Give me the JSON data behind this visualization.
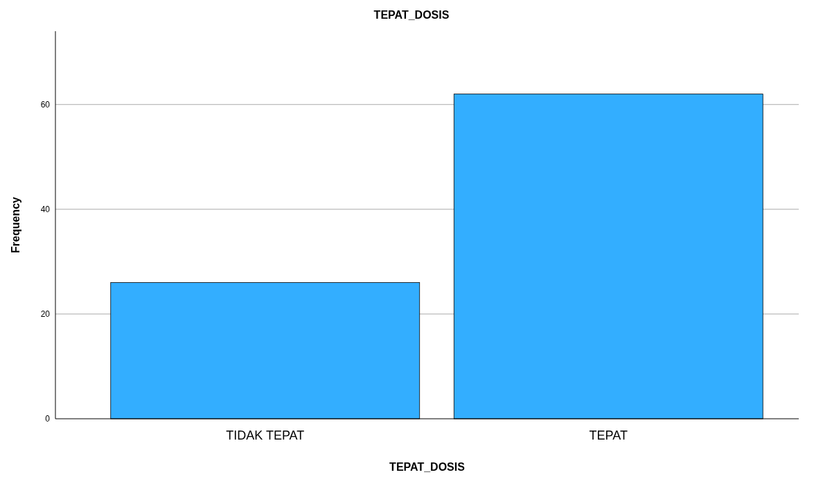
{
  "chart_data": {
    "type": "bar",
    "title": "TEPAT_DOSIS",
    "xlabel": "TEPAT_DOSIS",
    "ylabel": "Frequency",
    "categories": [
      "TIDAK TEPAT",
      "TEPAT"
    ],
    "values": [
      26,
      62
    ],
    "color": "#33aeff",
    "ylim": [
      0,
      74
    ],
    "yticks": [
      0,
      20,
      40,
      60
    ],
    "grid": "y"
  }
}
